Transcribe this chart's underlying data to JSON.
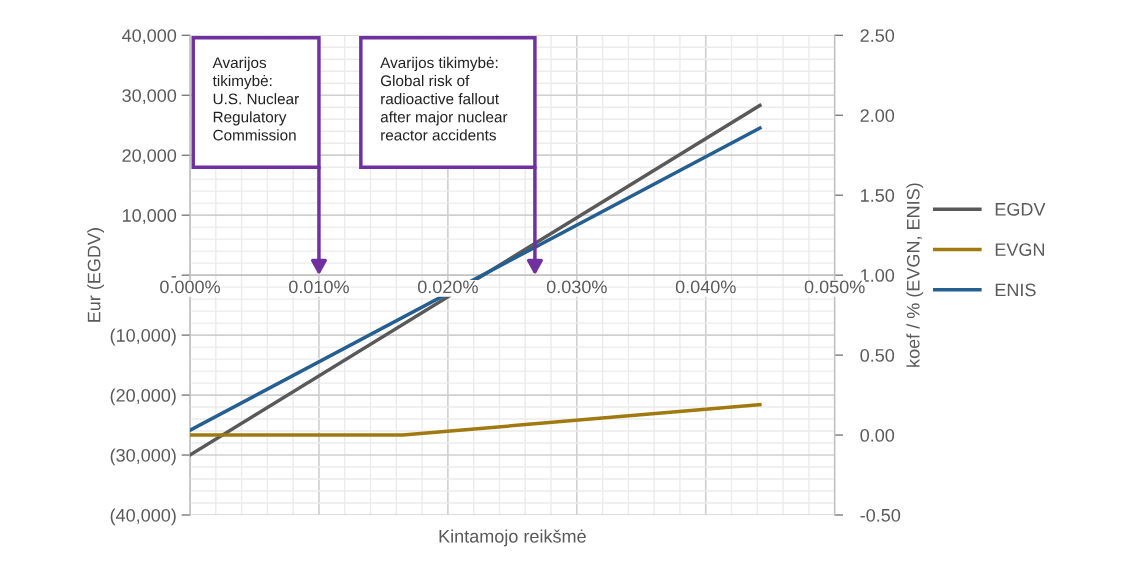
{
  "chart_data": {
    "type": "line",
    "xlabel": "Kintamojo reikšmė",
    "ylabel": "Eur (EGDV)",
    "y2label": "koef / % (EVGN, ENIS)",
    "x": [
      0.0,
      0.0442
    ],
    "series": [
      {
        "name": "EGDV",
        "color": "#595959",
        "values": [
          -30000,
          28300
        ]
      },
      {
        "name": "EVGN",
        "color": "#a07a10",
        "axis": "y2",
        "x": [
          0.0,
          0.0165,
          0.0442
        ],
        "values": [
          0.0,
          0.0,
          0.19
        ]
      },
      {
        "name": "ENIS",
        "color": "#255e91",
        "axis": "y2",
        "values": [
          0.03,
          1.92
        ]
      }
    ],
    "xlim": [
      0.0,
      0.05
    ],
    "xticks": [
      {
        "value": 0.0,
        "label": "0.000%"
      },
      {
        "value": 0.01,
        "label": "0.010%"
      },
      {
        "value": 0.02,
        "label": "0.020%"
      },
      {
        "value": 0.03,
        "label": "0.030%"
      },
      {
        "value": 0.04,
        "label": "0.040%"
      },
      {
        "value": 0.05,
        "label": "0.050%"
      }
    ],
    "ylim": [
      -40000,
      40000
    ],
    "yticks": [
      {
        "value": -40000,
        "label": "(40,000)"
      },
      {
        "value": -30000,
        "label": "(30,000)"
      },
      {
        "value": -20000,
        "label": "(20,000)"
      },
      {
        "value": -10000,
        "label": "(10,000)"
      },
      {
        "value": 0,
        "label": "-"
      },
      {
        "value": 10000,
        "label": "10,000"
      },
      {
        "value": 20000,
        "label": "20,000"
      },
      {
        "value": 30000,
        "label": "30,000"
      },
      {
        "value": 40000,
        "label": "40,000"
      }
    ],
    "y2lim": [
      -0.5,
      2.5
    ],
    "y2ticks": [
      {
        "value": -0.5,
        "label": "-0.50"
      },
      {
        "value": 0.0,
        "label": "0.00"
      },
      {
        "value": 0.5,
        "label": "0.50"
      },
      {
        "value": 1.0,
        "label": "1.00"
      },
      {
        "value": 1.5,
        "label": "1.50"
      },
      {
        "value": 2.0,
        "label": "2.00"
      },
      {
        "value": 2.5,
        "label": "2.50"
      }
    ],
    "annotations": [
      "Avarijos\ntikimybė:\nU.S. Nuclear\nRegulatory\nCommission",
      "Avarijos tikimybė:\nGlobal risk of\nradioactive fallout\nafter major nuclear\nreactor accidents"
    ],
    "grid": true,
    "legend": "right",
    "line_style": "solid",
    "marker": "none"
  }
}
